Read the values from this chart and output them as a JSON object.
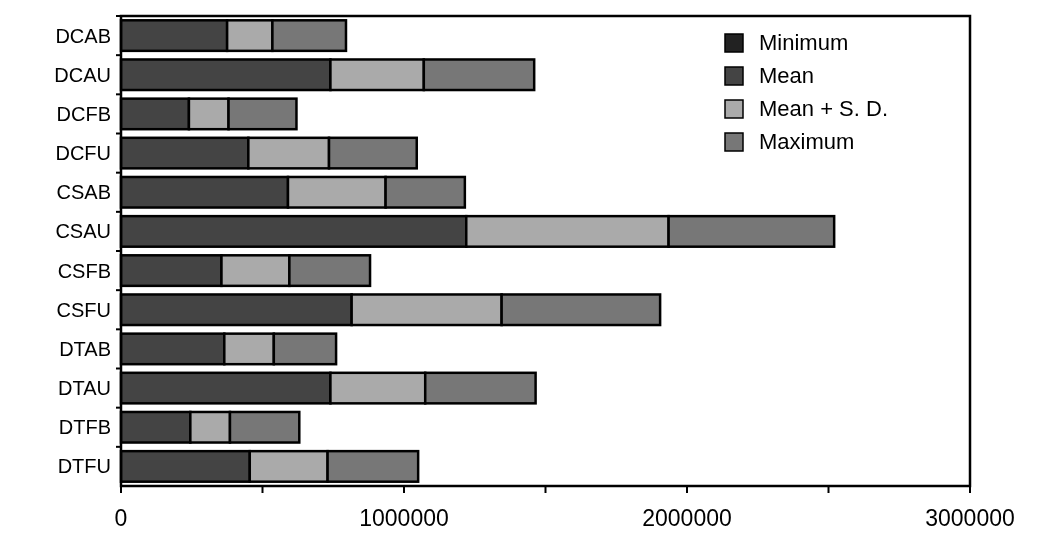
{
  "chart_data": {
    "type": "bar",
    "orientation": "horizontal",
    "stacked": true,
    "categories": [
      "DCAB",
      "DCAU",
      "DCFB",
      "DCFU",
      "CSAB",
      "CSAU",
      "CSFB",
      "CSFU",
      "DTAB",
      "DTAU",
      "DTFB",
      "DTFU"
    ],
    "series": [
      {
        "name": "Minimum",
        "color": "#222222",
        "values": [
          null,
          null,
          null,
          null,
          null,
          null,
          null,
          null,
          null,
          null,
          null,
          null
        ]
      },
      {
        "name": "Mean",
        "color": "#444444",
        "values": [
          375000,
          740000,
          240000,
          450000,
          590000,
          1220000,
          355000,
          815000,
          365000,
          740000,
          245000,
          455000
        ]
      },
      {
        "name": "Mean + S. D.",
        "color": "#aaaaaa",
        "values": [
          160000,
          330000,
          140000,
          285000,
          345000,
          715000,
          240000,
          530000,
          175000,
          335000,
          140000,
          275000
        ]
      },
      {
        "name": "Maximum",
        "color": "#777777",
        "values": [
          260000,
          390000,
          240000,
          310000,
          280000,
          585000,
          285000,
          560000,
          220000,
          390000,
          245000,
          320000
        ]
      }
    ],
    "xlim": [
      0,
      3000000
    ],
    "xticks": [
      0,
      {
        "value": 500000,
        "label": null
      },
      1000000,
      {
        "value": 1500000,
        "label": null
      },
      2000000,
      {
        "value": 2500000,
        "label": null
      },
      3000000
    ],
    "legend": "top right",
    "grid": false
  }
}
